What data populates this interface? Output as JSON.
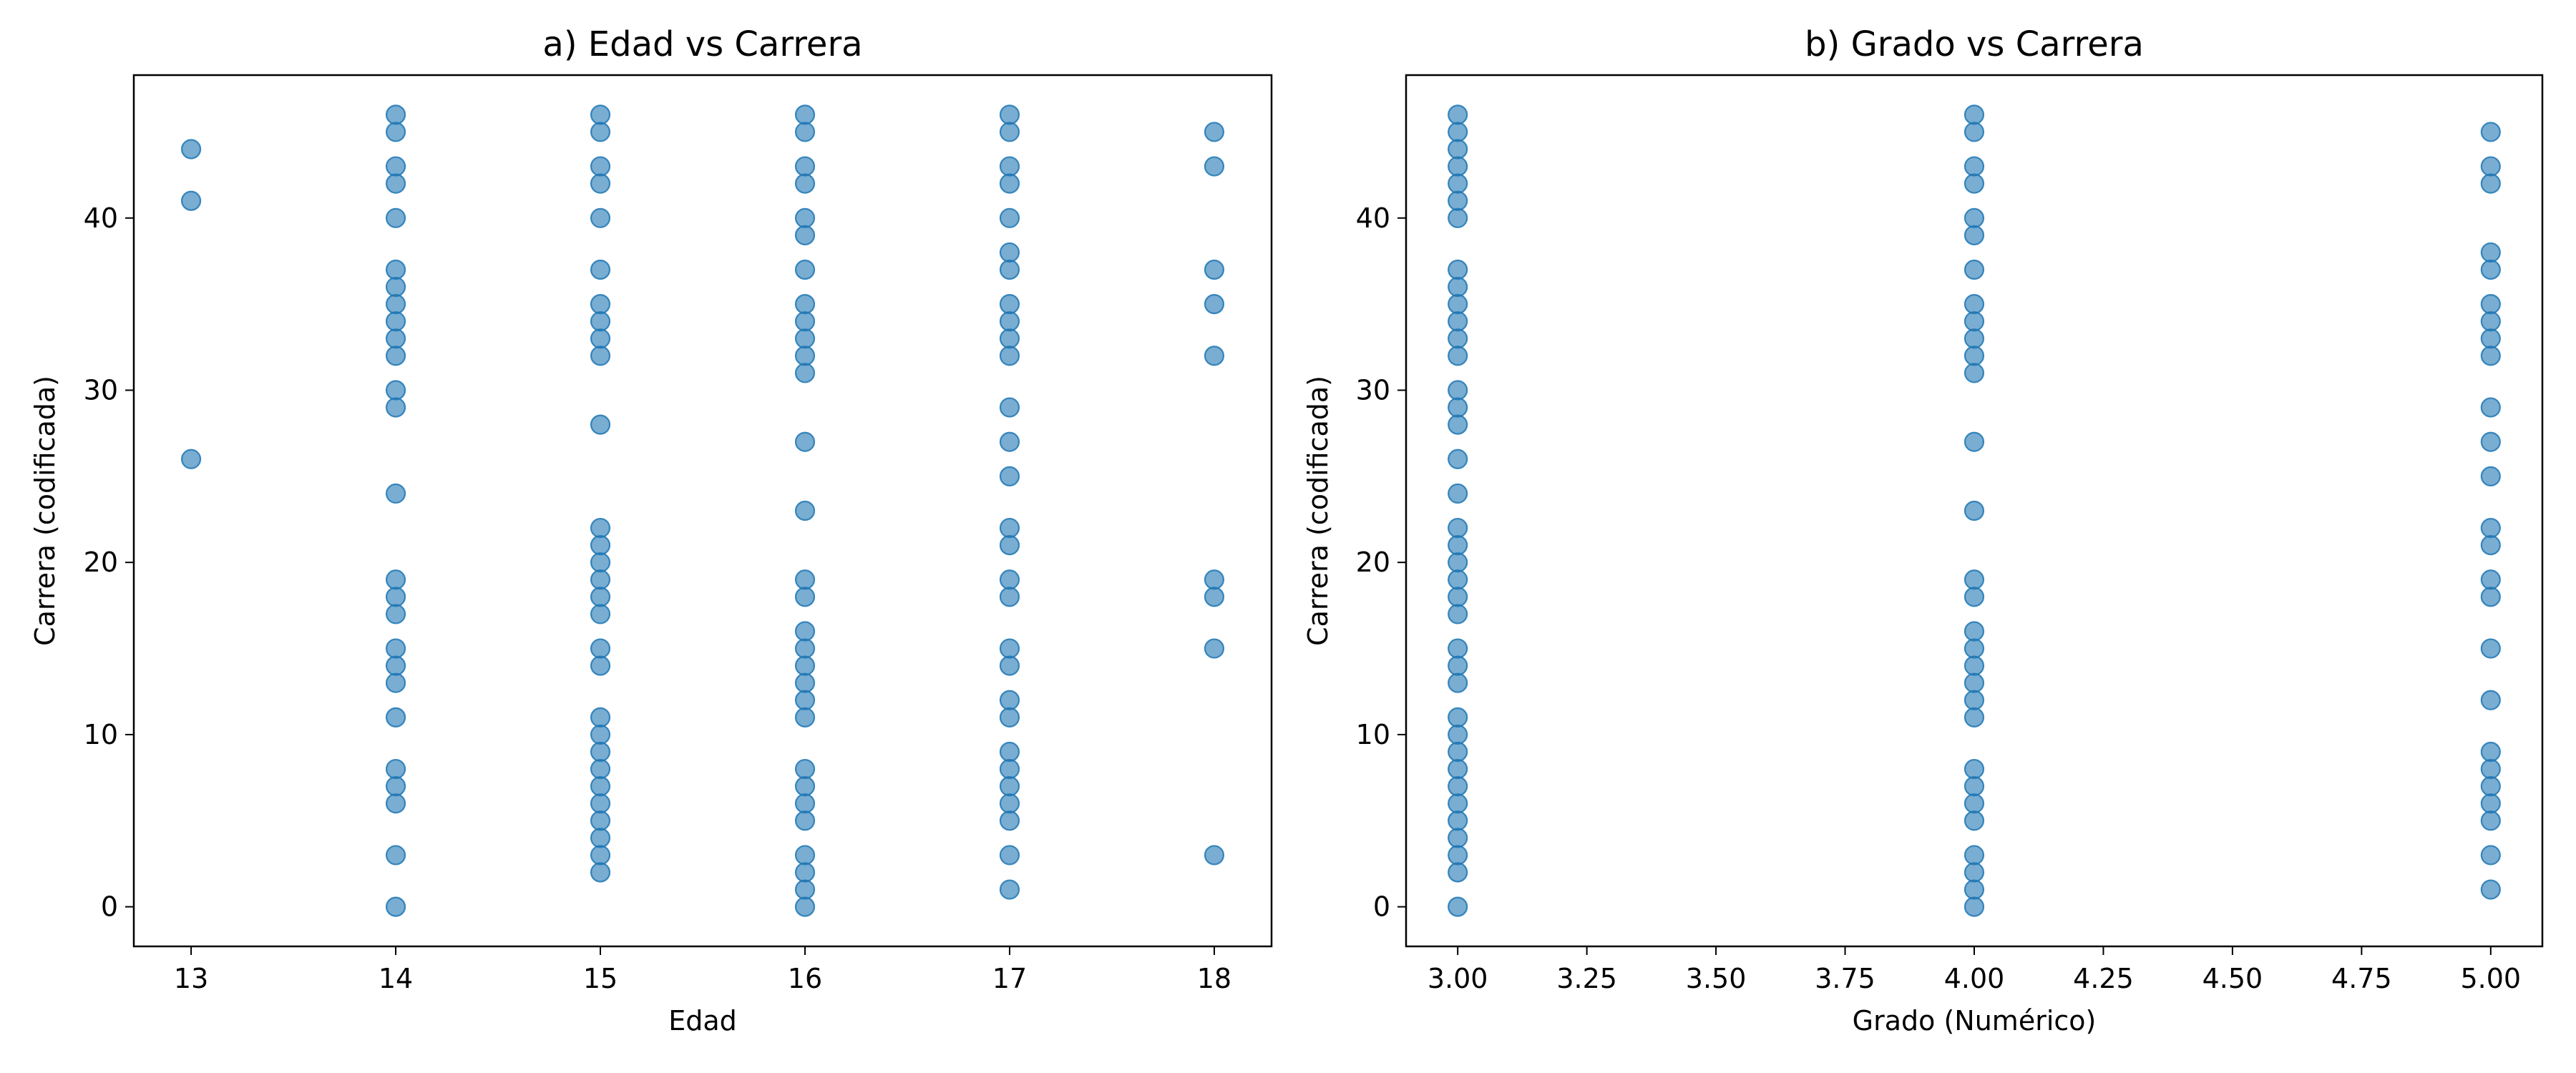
{
  "chart_data": [
    {
      "type": "scatter",
      "title": "a) Edad vs Carrera",
      "xlabel": "Edad",
      "ylabel": "Carrera (codificada)",
      "xlim": [
        12.72,
        18.28
      ],
      "ylim": [
        -2.3,
        48.3
      ],
      "xticks": [
        "13",
        "14",
        "15",
        "16",
        "17",
        "18"
      ],
      "yticks": [
        "0",
        "10",
        "20",
        "30",
        "40"
      ],
      "color": "#1f77b4",
      "grid": false,
      "points": [
        {
          "x": 13,
          "y": [
            26,
            41,
            44
          ]
        },
        {
          "x": 14,
          "y": [
            0,
            3,
            6,
            7,
            8,
            11,
            13,
            14,
            15,
            17,
            18,
            19,
            24,
            29,
            30,
            32,
            33,
            34,
            35,
            36,
            37,
            40,
            42,
            43,
            45,
            46
          ]
        },
        {
          "x": 15,
          "y": [
            2,
            3,
            4,
            5,
            6,
            7,
            8,
            9,
            10,
            11,
            14,
            15,
            17,
            18,
            19,
            20,
            21,
            22,
            28,
            32,
            33,
            34,
            35,
            37,
            40,
            42,
            43,
            45,
            46
          ]
        },
        {
          "x": 16,
          "y": [
            0,
            1,
            2,
            3,
            5,
            6,
            7,
            8,
            11,
            12,
            13,
            14,
            15,
            16,
            18,
            19,
            23,
            27,
            31,
            32,
            33,
            34,
            35,
            37,
            39,
            40,
            42,
            43,
            45,
            46
          ]
        },
        {
          "x": 17,
          "y": [
            1,
            3,
            5,
            6,
            7,
            8,
            9,
            11,
            12,
            14,
            15,
            18,
            19,
            21,
            22,
            25,
            27,
            29,
            32,
            33,
            34,
            35,
            37,
            38,
            40,
            42,
            43,
            45,
            46
          ]
        },
        {
          "x": 18,
          "y": [
            3,
            15,
            18,
            19,
            32,
            35,
            37,
            43,
            45
          ]
        }
      ]
    },
    {
      "type": "scatter",
      "title": "b) Grado vs Carrera",
      "xlabel": "Grado (Numérico)",
      "ylabel": "Carrera (codificada)",
      "xlim": [
        2.9,
        5.1
      ],
      "ylim": [
        -2.3,
        48.3
      ],
      "xticks": [
        "3.00",
        "3.25",
        "3.50",
        "3.75",
        "4.00",
        "4.25",
        "4.50",
        "4.75",
        "5.00"
      ],
      "yticks": [
        "0",
        "10",
        "20",
        "30",
        "40"
      ],
      "color": "#1f77b4",
      "grid": false,
      "points": [
        {
          "x": 3,
          "y": [
            0,
            2,
            3,
            4,
            5,
            6,
            7,
            8,
            9,
            10,
            11,
            13,
            14,
            15,
            17,
            18,
            19,
            20,
            21,
            22,
            24,
            26,
            28,
            29,
            30,
            32,
            33,
            34,
            35,
            36,
            37,
            40,
            41,
            42,
            43,
            44,
            45,
            46
          ]
        },
        {
          "x": 4,
          "y": [
            0,
            1,
            2,
            3,
            5,
            6,
            7,
            8,
            11,
            12,
            13,
            14,
            15,
            16,
            18,
            19,
            23,
            27,
            31,
            32,
            33,
            34,
            35,
            37,
            39,
            40,
            42,
            43,
            45,
            46
          ]
        },
        {
          "x": 5,
          "y": [
            1,
            3,
            5,
            6,
            7,
            8,
            9,
            12,
            15,
            18,
            19,
            21,
            22,
            25,
            27,
            29,
            32,
            33,
            34,
            35,
            37,
            38,
            42,
            43,
            45
          ]
        }
      ]
    }
  ]
}
